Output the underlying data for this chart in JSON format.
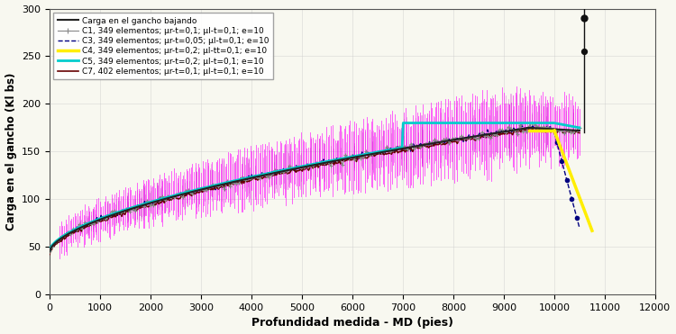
{
  "title": "",
  "xlabel": "Profundidad medida - MD (pies)",
  "ylabel": "Carga en el gancho (Kl bs)",
  "xlim": [
    0,
    12000
  ],
  "ylim": [
    0,
    300
  ],
  "xticks": [
    0,
    1000,
    2000,
    3000,
    4000,
    5000,
    6000,
    7000,
    8000,
    9000,
    10000,
    11000,
    12000
  ],
  "yticks": [
    0,
    50,
    100,
    150,
    200,
    250,
    300
  ],
  "background_color": "#f8f8f0",
  "base_start": 45,
  "base_peak_x": 9500,
  "base_peak_y": 175,
  "base_end_x": 10500,
  "base_end_y": 165,
  "c4_start_x": 9800,
  "c4_start_y": 172,
  "c4_end_x": 10800,
  "c4_end_y": 65,
  "c5_plateau": 178,
  "c3_drop_x": 10000,
  "extra_line_x": 10600,
  "extra_line_y_start": 170,
  "extra_line_y_end": 300,
  "extra_dot1_y": 255,
  "extra_dot2_y": 290
}
